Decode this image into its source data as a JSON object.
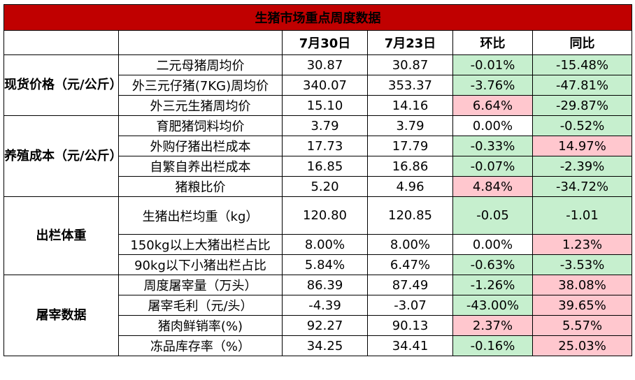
{
  "title": "生猪市场重点周度数据",
  "headers": [
    "",
    "",
    "7月30日",
    "7月23日",
    "环比",
    "同比"
  ],
  "colors": {
    "title_bg": "#c00000",
    "positive_bg": "#ffc7ce",
    "negative_bg": "#c6efce"
  },
  "groups": [
    {
      "label": "现货价格（元/公斤）",
      "rows": [
        {
          "item": "二元母猪周均价",
          "cur": "30.87",
          "prev": "30.87",
          "wow": "-0.01%",
          "wow_color": "g",
          "yoy": "-15.48%",
          "yoy_color": "g"
        },
        {
          "item": "外三元仔猪(7KG)周均价",
          "cur": "340.07",
          "prev": "353.37",
          "wow": "-3.76%",
          "wow_color": "g",
          "yoy": "-47.81%",
          "yoy_color": "g"
        },
        {
          "item": "外三元生猪周均价",
          "cur": "15.10",
          "prev": "14.16",
          "wow": "6.64%",
          "wow_color": "r",
          "yoy": "-29.87%",
          "yoy_color": "g"
        }
      ]
    },
    {
      "label": "养殖成本（元/公斤）",
      "rows": [
        {
          "item": "育肥猪饲料均价",
          "cur": "3.79",
          "prev": "3.79",
          "wow": "0.00%",
          "wow_color": "",
          "yoy": "-0.52%",
          "yoy_color": "g"
        },
        {
          "item": "外购仔猪出栏成本",
          "cur": "17.73",
          "prev": "17.79",
          "wow": "-0.33%",
          "wow_color": "g",
          "yoy": "14.97%",
          "yoy_color": "r"
        },
        {
          "item": "自繁自养出栏成本",
          "cur": "16.85",
          "prev": "16.86",
          "wow": "-0.07%",
          "wow_color": "g",
          "yoy": "-2.39%",
          "yoy_color": "g"
        },
        {
          "item": "猪粮比价",
          "cur": "5.20",
          "prev": "4.96",
          "wow": "4.84%",
          "wow_color": "r",
          "yoy": "-34.72%",
          "yoy_color": "g"
        }
      ]
    },
    {
      "label": "出栏体重",
      "rows": [
        {
          "item": "生猪出栏均重（kg）",
          "cur": "120.80",
          "prev": "120.85",
          "wow": "-0.05",
          "wow_color": "g",
          "yoy": "-1.01",
          "yoy_color": "g",
          "tall": true
        },
        {
          "item": "150kg以上大猪出栏占比",
          "cur": "8.00%",
          "prev": "8.00%",
          "wow": "0.00%",
          "wow_color": "",
          "yoy": "1.23%",
          "yoy_color": "r"
        },
        {
          "item": "90kg以下小猪出栏占比",
          "cur": "5.84%",
          "prev": "6.47%",
          "wow": "-0.63%",
          "wow_color": "g",
          "yoy": "-3.53%",
          "yoy_color": "g"
        }
      ]
    },
    {
      "label": "屠宰数据",
      "rows": [
        {
          "item": "周度屠宰量（万头）",
          "cur": "86.39",
          "prev": "87.49",
          "wow": "-1.26%",
          "wow_color": "g",
          "yoy": "38.08%",
          "yoy_color": "r"
        },
        {
          "item": "屠宰毛利（元/头）",
          "cur": "-4.39",
          "prev": "-3.07",
          "wow": "-43.00%",
          "wow_color": "g",
          "yoy": "39.65%",
          "yoy_color": "r"
        },
        {
          "item": "猪肉鲜销率(%)",
          "cur": "92.27",
          "prev": "90.13",
          "wow": "2.37%",
          "wow_color": "r",
          "yoy": "5.57%",
          "yoy_color": "r"
        },
        {
          "item": "冻品库存率（%）",
          "cur": "34.25",
          "prev": "34.41",
          "wow": "-0.16%",
          "wow_color": "g",
          "yoy": "25.03%",
          "yoy_color": "r"
        }
      ]
    }
  ]
}
